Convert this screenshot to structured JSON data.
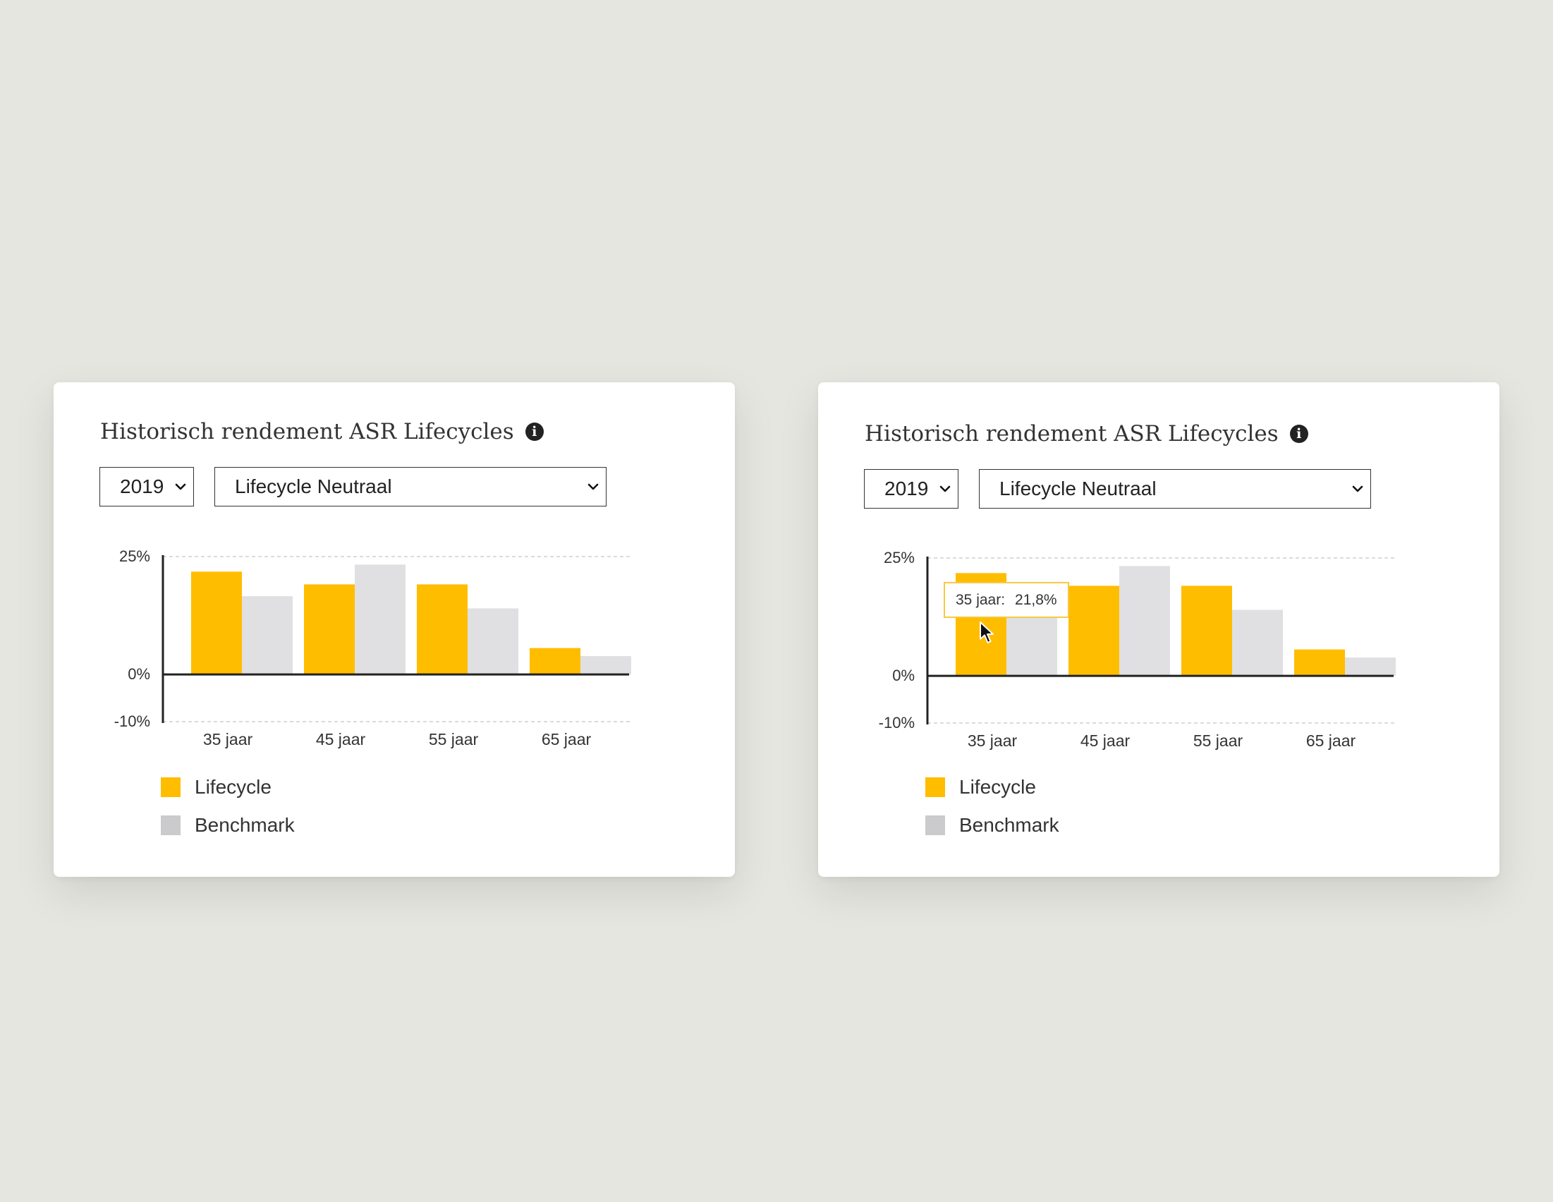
{
  "panels": [
    {
      "title": "Historisch rendement ASR Lifecycles",
      "info_icon": "info-icon",
      "info_glyph": "i",
      "year_select": {
        "value": "2019"
      },
      "fund_select": {
        "value": "Lifecycle Neutraal"
      }
    },
    {
      "title": "Historisch rendement ASR Lifecycles",
      "info_icon": "info-icon",
      "info_glyph": "i",
      "year_select": {
        "value": "2019"
      },
      "fund_select": {
        "value": "Lifecycle Neutraal"
      },
      "tooltip": {
        "label": "35 jaar:",
        "value": "21,8%"
      }
    }
  ],
  "colors": {
    "lifecycle": "#ffbd00",
    "benchmark": "#e0e0e2",
    "legend_benchmark": "#cbcbcd",
    "tooltip_border": "#f8c842"
  },
  "chart_data": [
    {
      "type": "bar",
      "categories": [
        "35 jaar",
        "45 jaar",
        "55 jaar",
        "65 jaar"
      ],
      "series": [
        {
          "name": "Lifecycle",
          "values": [
            21.8,
            19.1,
            19.1,
            5.6
          ]
        },
        {
          "name": "Benchmark",
          "values": [
            16.6,
            23.3,
            14.0,
            3.9
          ]
        }
      ],
      "yticks": [
        "25%",
        "0%",
        "-10%"
      ],
      "ylim": [
        -10,
        25
      ],
      "grid": "dashed at 25% and -10%",
      "legend": "bottom-left"
    },
    {
      "type": "bar",
      "categories": [
        "35 jaar",
        "45 jaar",
        "55 jaar",
        "65 jaar"
      ],
      "series": [
        {
          "name": "Lifecycle",
          "values": [
            21.8,
            19.1,
            19.1,
            5.6
          ]
        },
        {
          "name": "Benchmark",
          "values": [
            16.6,
            23.3,
            14.0,
            3.9
          ]
        }
      ],
      "yticks": [
        "25%",
        "0%",
        "-10%"
      ],
      "ylim": [
        -10,
        25
      ],
      "grid": "dashed at 25% and -10%",
      "legend": "bottom-left"
    }
  ]
}
